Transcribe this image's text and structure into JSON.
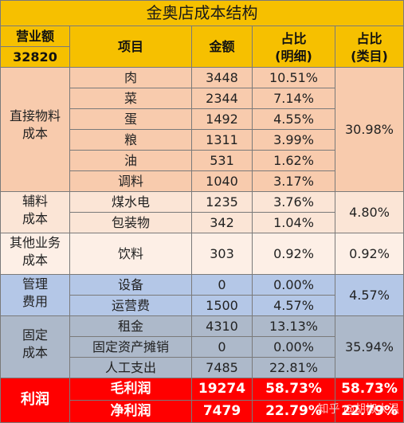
{
  "title": "金奥店成本结构",
  "header": {
    "revenue_label": "营业额",
    "revenue_value": "32820",
    "item": "项目",
    "amount": "金额",
    "detail_line1": "占比",
    "detail_line2": "(明细)",
    "category_line1": "占比",
    "category_line2": "(类目)"
  },
  "groups": {
    "direct": {
      "line1": "直接物料",
      "line2": "成本",
      "share": "30.98%"
    },
    "aux": {
      "line1": "辅料",
      "line2": "成本",
      "share": "4.80%"
    },
    "other": {
      "line1": "其他业务",
      "line2": "成本",
      "share": "0.92%"
    },
    "mgmt": {
      "line1": "管理",
      "line2": "费用",
      "share": "4.57%"
    },
    "fixed": {
      "line1": "固定",
      "line2": "成本",
      "share": "35.94%"
    },
    "profit": {
      "label": "利润"
    }
  },
  "rows": [
    {
      "item": "肉",
      "amount": "3448",
      "pct": "10.51%"
    },
    {
      "item": "菜",
      "amount": "2344",
      "pct": "7.14%"
    },
    {
      "item": "蛋",
      "amount": "1492",
      "pct": "4.55%"
    },
    {
      "item": "粮",
      "amount": "1311",
      "pct": "3.99%"
    },
    {
      "item": "油",
      "amount": "531",
      "pct": "1.62%"
    },
    {
      "item": "调料",
      "amount": "1040",
      "pct": "3.17%"
    },
    {
      "item": "煤水电",
      "amount": "1235",
      "pct": "3.76%"
    },
    {
      "item": "包装物",
      "amount": "342",
      "pct": "1.04%"
    },
    {
      "item": "饮料",
      "amount": "303",
      "pct": "0.92%"
    },
    {
      "item": "设备",
      "amount": "0",
      "pct": "0.00%"
    },
    {
      "item": "运营费",
      "amount": "1500",
      "pct": "4.57%"
    },
    {
      "item": "租金",
      "amount": "4310",
      "pct": "13.13%"
    },
    {
      "item": "固定资产摊销",
      "amount": "0",
      "pct": "0.00%"
    },
    {
      "item": "人工支出",
      "amount": "7485",
      "pct": "22.81%"
    },
    {
      "item": "毛利润",
      "amount": "19274",
      "pct": "58.73%",
      "cat": "58.73%"
    },
    {
      "item": "净利润",
      "amount": "7479",
      "pct": "22.79%",
      "cat": "22.79%"
    }
  ],
  "watermark": "知乎 @胡椒大温",
  "colors": {
    "header": "#f6c000",
    "direct": "#f8cbad",
    "aux": "#fbe5d6",
    "other": "#fdefe6",
    "mgmt": "#b4c7e7",
    "fixed": "#adb9ca",
    "profit": "#ff0000"
  }
}
